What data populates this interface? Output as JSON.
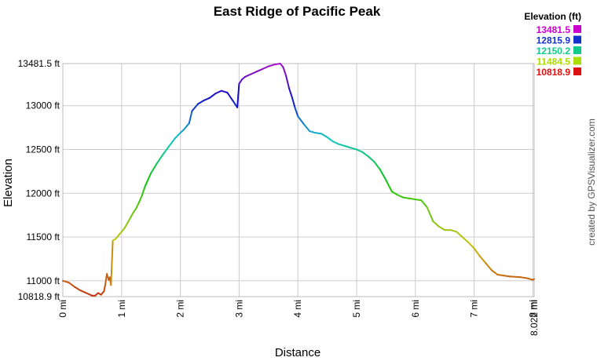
{
  "chart_data": {
    "type": "line",
    "title": "East Ridge of Pacific Peak",
    "xlabel": "Distance",
    "ylabel": "Elevation",
    "credit": "created by GPSVisualizer.com",
    "xlim": [
      0,
      8.022
    ],
    "ylim": [
      10818.9,
      13481.5
    ],
    "x_ticks": [
      {
        "value": 0,
        "label": "0 mi"
      },
      {
        "value": 1,
        "label": "1 mi"
      },
      {
        "value": 2,
        "label": "2 mi"
      },
      {
        "value": 3,
        "label": "3 mi"
      },
      {
        "value": 4,
        "label": "4 mi"
      },
      {
        "value": 5,
        "label": "5 mi"
      },
      {
        "value": 6,
        "label": "6 mi"
      },
      {
        "value": 7,
        "label": "7 mi"
      },
      {
        "value": 8,
        "label": "8 mi"
      },
      {
        "value": 8.022,
        "label": "8.022 mi"
      }
    ],
    "y_ticks": [
      {
        "value": 10818.9,
        "label": "10818.9 ft"
      },
      {
        "value": 11000,
        "label": "11000 ft"
      },
      {
        "value": 11500,
        "label": "11500 ft"
      },
      {
        "value": 12000,
        "label": "12000 ft"
      },
      {
        "value": 12500,
        "label": "12500 ft"
      },
      {
        "value": 13000,
        "label": "13000 ft"
      },
      {
        "value": 13481.5,
        "label": "13481.5 ft"
      }
    ],
    "grid": true,
    "legend": {
      "title": "Elevation (ft)",
      "placement": "top-right",
      "entries": [
        {
          "label": "13481.5",
          "color": "#cc00cc"
        },
        {
          "label": "12815.9",
          "color": "#1133cc"
        },
        {
          "label": "12150.2",
          "color": "#11cc88"
        },
        {
          "label": "11484.5",
          "color": "#aadd00"
        },
        {
          "label": "10818.9",
          "color": "#dd1111"
        }
      ]
    },
    "series": [
      {
        "x": [
          0,
          0.1,
          0.2,
          0.3,
          0.4,
          0.5,
          0.55,
          0.6,
          0.65,
          0.7,
          0.72,
          0.75,
          0.78,
          0.8,
          0.82,
          0.85,
          0.9,
          0.95,
          1.0,
          1.05,
          1.1,
          1.15,
          1.2,
          1.25,
          1.3,
          1.35,
          1.4,
          1.5,
          1.6,
          1.7,
          1.8,
          1.9,
          2.0,
          2.05,
          2.1,
          2.15,
          2.2,
          2.3,
          2.4,
          2.5,
          2.6,
          2.7,
          2.8,
          2.9,
          2.97,
          3.0,
          3.05,
          3.1,
          3.2,
          3.3,
          3.4,
          3.5,
          3.6,
          3.7,
          3.75,
          3.8,
          3.85,
          3.9,
          3.95,
          4.0,
          4.1,
          4.2,
          4.3,
          4.4,
          4.5,
          4.6,
          4.7,
          4.8,
          4.9,
          5.0,
          5.1,
          5.2,
          5.3,
          5.4,
          5.5,
          5.6,
          5.7,
          5.8,
          5.9,
          6.0,
          6.1,
          6.2,
          6.3,
          6.4,
          6.5,
          6.6,
          6.7,
          6.8,
          6.9,
          7.0,
          7.1,
          7.2,
          7.3,
          7.4,
          7.5,
          7.6,
          7.7,
          7.8,
          7.9,
          8.0,
          8.022
        ],
        "y": [
          11000,
          10980,
          10930,
          10890,
          10860,
          10830,
          10830,
          10860,
          10840,
          10880,
          10950,
          11080,
          11010,
          11040,
          10950,
          11460,
          11480,
          11520,
          11560,
          11600,
          11660,
          11720,
          11780,
          11830,
          11900,
          11980,
          12080,
          12230,
          12340,
          12440,
          12530,
          12620,
          12690,
          12720,
          12760,
          12800,
          12940,
          13020,
          13060,
          13090,
          13140,
          13170,
          13150,
          13050,
          12980,
          13250,
          13300,
          13330,
          13360,
          13390,
          13420,
          13450,
          13470,
          13481.5,
          13440,
          13340,
          13200,
          13100,
          12980,
          12880,
          12790,
          12710,
          12690,
          12680,
          12640,
          12590,
          12560,
          12540,
          12520,
          12500,
          12470,
          12420,
          12360,
          12270,
          12150,
          12020,
          11980,
          11950,
          11940,
          11930,
          11920,
          11840,
          11680,
          11620,
          11580,
          11580,
          11560,
          11500,
          11440,
          11370,
          11280,
          11200,
          11120,
          11070,
          11060,
          11050,
          11045,
          11040,
          11030,
          11010,
          11020
        ]
      }
    ]
  }
}
